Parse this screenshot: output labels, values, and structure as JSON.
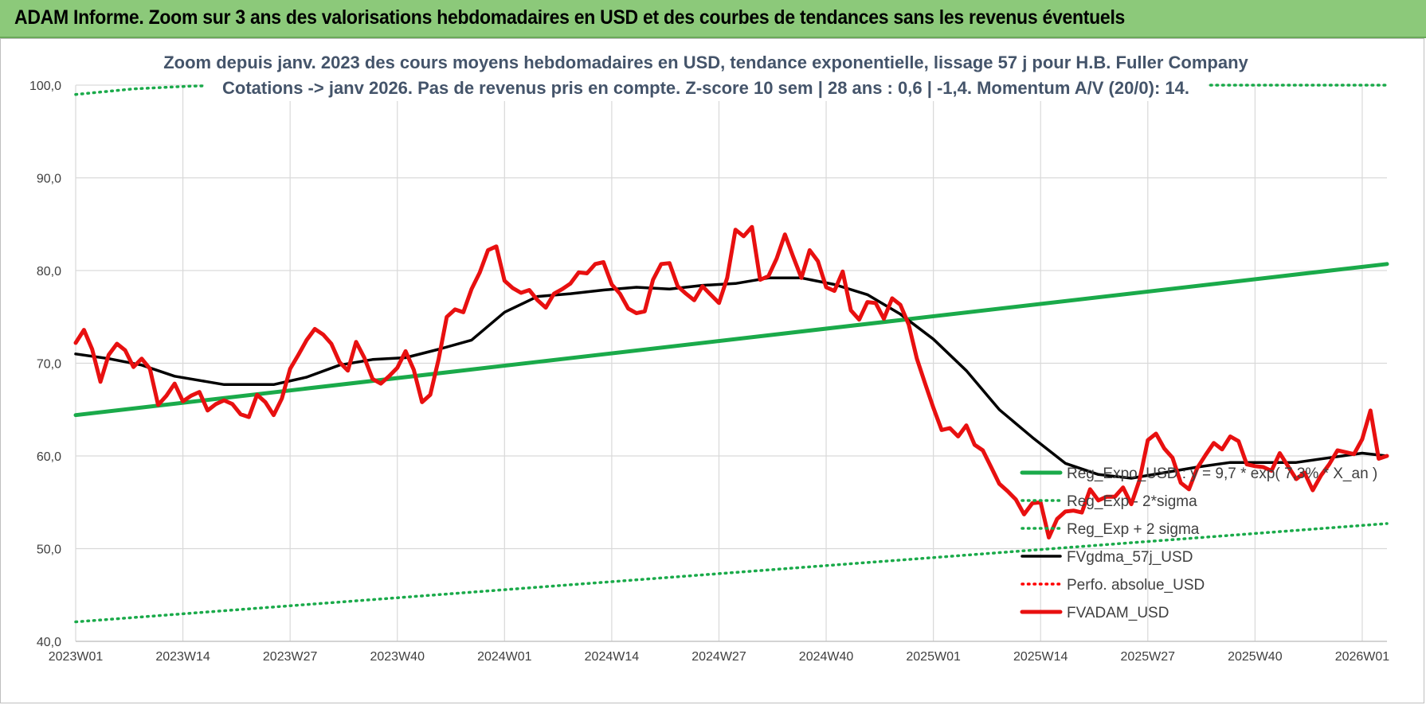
{
  "header": {
    "title": "ADAM Informe. Zoom sur 3 ans des valorisations hebdomadaires en USD et des courbes de tendances sans les revenus éventuels"
  },
  "chart_data": {
    "type": "line",
    "title": "Zoom depuis janv. 2023 des cours moyens hebdomadaires en USD, tendance exponentielle, lissage 57 j pour H.B. Fuller Company",
    "subtitle": "Cotations -> janv 2026. Pas de revenus pris en compte. Z-score 10 sem | 28 ans : 0,6 | -1,4. Momentum A/V (20/0): 14.",
    "xlabel": "",
    "ylabel": "",
    "ylim": [
      40,
      100
    ],
    "yticks": [
      "100,0",
      "90,0",
      "80,0",
      "70,0",
      "60,0",
      "50,0",
      "40,0"
    ],
    "x_tick_labels": [
      "2023W01",
      "2023W14",
      "2023W27",
      "2023W40",
      "2024W01",
      "2024W14",
      "2024W27",
      "2024W40",
      "2025W01",
      "2025W14",
      "2025W27",
      "2025W40",
      "2026W01"
    ],
    "x_range_weeks": [
      0,
      159
    ],
    "grid": true,
    "legend_position": "bottom-right",
    "series": [
      {
        "name": "Reg_Expo_USD : y = 9,7 * exp( 7,3% * X_an )",
        "color": "#1aaa4a",
        "style": "solid-thick",
        "points": [
          [
            0,
            64.4
          ],
          [
            159,
            80.7
          ]
        ]
      },
      {
        "name": "Reg_Exp - 2*sigma",
        "color": "#1aaa4a",
        "style": "dotted",
        "points": [
          [
            0,
            42.1
          ],
          [
            159,
            52.7
          ]
        ]
      },
      {
        "name": "Reg_Exp + 2 sigma",
        "color": "#1aaa4a",
        "style": "dotted",
        "points": [
          [
            0,
            99.0
          ],
          [
            7,
            99.6
          ],
          [
            14,
            99.9
          ],
          [
            21,
            100.0
          ],
          [
            159,
            100.0
          ]
        ]
      },
      {
        "name": "FVgdma_57j_USD",
        "color": "#000000",
        "style": "solid",
        "points": [
          [
            0,
            71.0
          ],
          [
            4,
            70.5
          ],
          [
            8,
            69.8
          ],
          [
            12,
            68.6
          ],
          [
            16,
            68.0
          ],
          [
            18,
            67.7
          ],
          [
            24,
            67.7
          ],
          [
            28,
            68.5
          ],
          [
            32,
            69.8
          ],
          [
            36,
            70.4
          ],
          [
            40,
            70.6
          ],
          [
            44,
            71.5
          ],
          [
            48,
            72.5
          ],
          [
            52,
            75.5
          ],
          [
            56,
            77.2
          ],
          [
            60,
            77.5
          ],
          [
            64,
            77.9
          ],
          [
            68,
            78.2
          ],
          [
            72,
            78.0
          ],
          [
            76,
            78.4
          ],
          [
            80,
            78.6
          ],
          [
            84,
            79.2
          ],
          [
            88,
            79.2
          ],
          [
            92,
            78.5
          ],
          [
            96,
            77.4
          ],
          [
            100,
            75.3
          ],
          [
            104,
            72.6
          ],
          [
            108,
            69.2
          ],
          [
            112,
            65.0
          ],
          [
            116,
            62.0
          ],
          [
            120,
            59.2
          ],
          [
            124,
            58.0
          ],
          [
            128,
            57.6
          ],
          [
            132,
            58.2
          ],
          [
            136,
            58.8
          ],
          [
            140,
            59.3
          ],
          [
            144,
            59.3
          ],
          [
            148,
            59.3
          ],
          [
            152,
            59.8
          ],
          [
            156,
            60.3
          ],
          [
            159,
            60.0
          ]
        ]
      },
      {
        "name": "Perfo. absolue_USD",
        "color": "#ff0000",
        "style": "dotted",
        "points": []
      },
      {
        "name": "FVADAM_USD",
        "color": "#e81010",
        "style": "solid-thick",
        "points": [
          [
            0,
            72.2
          ],
          [
            1,
            73.6
          ],
          [
            2,
            71.5
          ],
          [
            3,
            68.0
          ],
          [
            4,
            70.9
          ],
          [
            5,
            72.1
          ],
          [
            6,
            71.4
          ],
          [
            7,
            69.6
          ],
          [
            8,
            70.5
          ],
          [
            9,
            69.4
          ],
          [
            10,
            65.5
          ],
          [
            11,
            66.5
          ],
          [
            12,
            67.8
          ],
          [
            13,
            65.9
          ],
          [
            14,
            66.5
          ],
          [
            15,
            66.9
          ],
          [
            16,
            64.9
          ],
          [
            17,
            65.6
          ],
          [
            18,
            66.0
          ],
          [
            19,
            65.6
          ],
          [
            20,
            64.5
          ],
          [
            21,
            64.2
          ],
          [
            22,
            66.6
          ],
          [
            23,
            65.8
          ],
          [
            24,
            64.4
          ],
          [
            25,
            66.2
          ],
          [
            26,
            69.4
          ],
          [
            27,
            70.9
          ],
          [
            28,
            72.5
          ],
          [
            29,
            73.7
          ],
          [
            30,
            73.1
          ],
          [
            31,
            72.1
          ],
          [
            32,
            70.1
          ],
          [
            33,
            69.2
          ],
          [
            34,
            72.3
          ],
          [
            35,
            70.6
          ],
          [
            36,
            68.3
          ],
          [
            37,
            67.8
          ],
          [
            38,
            68.6
          ],
          [
            39,
            69.5
          ],
          [
            40,
            71.3
          ],
          [
            41,
            69.3
          ],
          [
            42,
            65.8
          ],
          [
            43,
            66.6
          ],
          [
            44,
            70.4
          ],
          [
            45,
            75.0
          ],
          [
            46,
            75.8
          ],
          [
            47,
            75.5
          ],
          [
            48,
            78.0
          ],
          [
            49,
            79.8
          ],
          [
            50,
            82.2
          ],
          [
            51,
            82.6
          ],
          [
            52,
            78.9
          ],
          [
            53,
            78.1
          ],
          [
            54,
            77.6
          ],
          [
            55,
            77.9
          ],
          [
            56,
            76.8
          ],
          [
            57,
            76.0
          ],
          [
            58,
            77.5
          ],
          [
            59,
            78.0
          ],
          [
            60,
            78.6
          ],
          [
            61,
            79.8
          ],
          [
            62,
            79.7
          ],
          [
            63,
            80.7
          ],
          [
            64,
            80.9
          ],
          [
            65,
            78.5
          ],
          [
            66,
            77.5
          ],
          [
            67,
            75.9
          ],
          [
            68,
            75.4
          ],
          [
            69,
            75.6
          ],
          [
            70,
            79.0
          ],
          [
            71,
            80.7
          ],
          [
            72,
            80.8
          ],
          [
            73,
            78.3
          ],
          [
            74,
            77.5
          ],
          [
            75,
            76.8
          ],
          [
            76,
            78.3
          ],
          [
            77,
            77.4
          ],
          [
            78,
            76.5
          ],
          [
            79,
            79.2
          ],
          [
            80,
            84.4
          ],
          [
            81,
            83.7
          ],
          [
            82,
            84.7
          ],
          [
            83,
            79.0
          ],
          [
            84,
            79.4
          ],
          [
            85,
            81.3
          ],
          [
            86,
            83.9
          ],
          [
            87,
            81.5
          ],
          [
            88,
            79.2
          ],
          [
            89,
            82.2
          ],
          [
            90,
            81.0
          ],
          [
            91,
            78.2
          ],
          [
            92,
            77.8
          ],
          [
            93,
            79.9
          ],
          [
            94,
            75.7
          ],
          [
            95,
            74.7
          ],
          [
            96,
            76.6
          ],
          [
            97,
            76.5
          ],
          [
            98,
            74.8
          ],
          [
            99,
            77.0
          ],
          [
            100,
            76.3
          ],
          [
            101,
            74.2
          ],
          [
            102,
            70.5
          ],
          [
            103,
            67.8
          ],
          [
            104,
            65.2
          ],
          [
            105,
            62.8
          ],
          [
            106,
            63.0
          ],
          [
            107,
            62.1
          ],
          [
            108,
            63.3
          ],
          [
            109,
            61.2
          ],
          [
            110,
            60.6
          ],
          [
            111,
            58.8
          ],
          [
            112,
            57.0
          ],
          [
            113,
            56.2
          ],
          [
            114,
            55.3
          ],
          [
            115,
            53.7
          ],
          [
            116,
            54.9
          ],
          [
            117,
            55.0
          ],
          [
            118,
            51.2
          ],
          [
            119,
            53.2
          ],
          [
            120,
            54.0
          ],
          [
            121,
            54.1
          ],
          [
            122,
            53.9
          ],
          [
            123,
            56.4
          ],
          [
            124,
            55.2
          ],
          [
            125,
            55.6
          ],
          [
            126,
            55.6
          ],
          [
            127,
            56.6
          ],
          [
            128,
            54.8
          ],
          [
            129,
            57.4
          ],
          [
            130,
            61.7
          ],
          [
            131,
            62.4
          ],
          [
            132,
            60.8
          ],
          [
            133,
            59.8
          ],
          [
            134,
            57.1
          ],
          [
            135,
            56.4
          ],
          [
            136,
            58.7
          ],
          [
            137,
            60.1
          ],
          [
            138,
            61.4
          ],
          [
            139,
            60.7
          ],
          [
            140,
            62.1
          ],
          [
            141,
            61.6
          ],
          [
            142,
            59.1
          ],
          [
            143,
            58.9
          ],
          [
            144,
            58.8
          ],
          [
            145,
            58.4
          ],
          [
            146,
            60.3
          ],
          [
            147,
            58.9
          ],
          [
            148,
            57.5
          ],
          [
            149,
            58.2
          ],
          [
            150,
            56.3
          ],
          [
            151,
            57.9
          ],
          [
            152,
            59.1
          ],
          [
            153,
            60.6
          ],
          [
            154,
            60.4
          ],
          [
            155,
            60.2
          ],
          [
            156,
            61.8
          ],
          [
            157,
            64.9
          ],
          [
            158,
            59.7
          ],
          [
            159,
            60.0
          ]
        ]
      }
    ]
  }
}
